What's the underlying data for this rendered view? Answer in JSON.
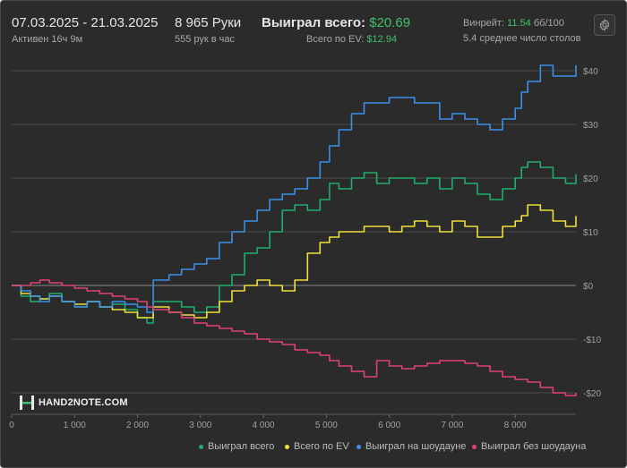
{
  "header": {
    "date_range": "07.03.2025 - 21.03.2025",
    "active": "Активен 16ч 9м",
    "hands": "8 965 Руки",
    "hands_per_hour": "555 рук в час",
    "won_total_label": "Выиграл всего:",
    "won_total_value": "$20.69",
    "ev_total_label": "Всего по EV:",
    "ev_total_value": "$12.94",
    "winrate_label": "Винрейт:",
    "winrate_value": "11.54",
    "winrate_unit": "бб/100",
    "avg_tables": "5.4 среднее число столов"
  },
  "logo": {
    "text": "HAND2NOTE.COM"
  },
  "colors": {
    "background": "#2b2b2b",
    "grid": "#4a4a4a",
    "zero_line": "#8a8a8a",
    "won_total": "#1fae6a",
    "ev": "#f0e03a",
    "showdown": "#3b8fe8",
    "no_showdown": "#e0407a",
    "accent_green": "#3ec06a"
  },
  "chart_data": {
    "type": "line",
    "x_ticks": [
      0,
      1000,
      2000,
      3000,
      4000,
      5000,
      6000,
      7000,
      8000
    ],
    "x_tick_labels": [
      "0",
      "1 000",
      "2 000",
      "3 000",
      "4 000",
      "5 000",
      "6 000",
      "7 000",
      "8 000"
    ],
    "y_ticks": [
      -20,
      -10,
      0,
      10,
      20,
      30,
      40
    ],
    "y_tick_labels": [
      "-$20",
      "-$10",
      "$0",
      "$10",
      "$20",
      "$30",
      "$40"
    ],
    "xlim": [
      0,
      8965
    ],
    "ylim": [
      -24,
      43
    ],
    "grid": true,
    "legend_position": "bottom-right",
    "series": [
      {
        "name": "Выиграл всего",
        "color": "#1fae6a",
        "x": [
          0,
          150,
          300,
          450,
          600,
          800,
          1000,
          1200,
          1400,
          1600,
          1800,
          2000,
          2150,
          2250,
          2500,
          2700,
          2900,
          3100,
          3300,
          3500,
          3700,
          3900,
          4100,
          4300,
          4500,
          4700,
          4900,
          5050,
          5200,
          5400,
          5600,
          5800,
          6000,
          6200,
          6400,
          6600,
          6800,
          7000,
          7200,
          7400,
          7600,
          7800,
          8000,
          8100,
          8200,
          8400,
          8600,
          8800,
          8965
        ],
        "y": [
          0,
          -2,
          -3,
          -2.5,
          -1.5,
          -3,
          -4,
          -3,
          -4,
          -3.5,
          -4.5,
          -6,
          -7,
          -3,
          -3,
          -4,
          -5,
          -4,
          0,
          2,
          6,
          7,
          10,
          14,
          15,
          14,
          16,
          19,
          18,
          20,
          21,
          19,
          20,
          20,
          19,
          20,
          18,
          20,
          19,
          17,
          16,
          18,
          20,
          22,
          23,
          22,
          20,
          19,
          20.69
        ]
      },
      {
        "name": "Всего по EV",
        "color": "#f0e03a",
        "x": [
          0,
          150,
          300,
          450,
          600,
          800,
          1000,
          1200,
          1400,
          1600,
          1800,
          2000,
          2150,
          2250,
          2500,
          2700,
          2900,
          3100,
          3300,
          3500,
          3700,
          3900,
          4100,
          4300,
          4500,
          4700,
          4900,
          5050,
          5200,
          5400,
          5600,
          5800,
          6000,
          6200,
          6400,
          6600,
          6800,
          7000,
          7200,
          7400,
          7600,
          7800,
          8000,
          8100,
          8200,
          8400,
          8600,
          8800,
          8965
        ],
        "y": [
          0,
          -1.5,
          -2,
          -2.5,
          -2,
          -3,
          -3.5,
          -3,
          -4,
          -4.5,
          -5,
          -6,
          -6,
          -4,
          -5,
          -5.5,
          -6,
          -5,
          -3,
          -1,
          0,
          1,
          0,
          -1,
          1,
          6,
          8,
          9,
          10,
          10,
          11,
          11,
          10,
          11,
          12,
          11,
          10,
          12,
          11,
          9,
          9,
          11,
          12,
          13,
          15,
          14,
          12,
          11,
          12.94
        ]
      },
      {
        "name": "Выиграл на шоудауне",
        "color": "#3b8fe8",
        "x": [
          0,
          150,
          300,
          450,
          600,
          800,
          1000,
          1200,
          1400,
          1600,
          1800,
          2000,
          2150,
          2250,
          2500,
          2700,
          2900,
          3100,
          3300,
          3500,
          3700,
          3900,
          4100,
          4300,
          4500,
          4700,
          4900,
          5050,
          5200,
          5400,
          5600,
          5800,
          6000,
          6200,
          6400,
          6600,
          6800,
          7000,
          7200,
          7400,
          7600,
          7800,
          8000,
          8100,
          8200,
          8400,
          8600,
          8800,
          8965
        ],
        "y": [
          0,
          -1,
          -2,
          -3,
          -2,
          -3,
          -4,
          -3,
          -4,
          -3,
          -3.5,
          -4,
          -5,
          1,
          2,
          3,
          4,
          5,
          8,
          10,
          12,
          14,
          16,
          17,
          18,
          20,
          23,
          26,
          29,
          32,
          34,
          34,
          35,
          35,
          34,
          34,
          31,
          32,
          31,
          30,
          29,
          31,
          33,
          36,
          38,
          41,
          39,
          39,
          41
        ]
      },
      {
        "name": "Выиграл без шоудауна",
        "color": "#e0407a",
        "x": [
          0,
          150,
          300,
          450,
          600,
          800,
          1000,
          1200,
          1400,
          1600,
          1800,
          2000,
          2150,
          2250,
          2500,
          2700,
          2900,
          3100,
          3300,
          3500,
          3700,
          3900,
          4100,
          4300,
          4500,
          4700,
          4900,
          5050,
          5200,
          5400,
          5600,
          5800,
          6000,
          6200,
          6400,
          6600,
          6800,
          7000,
          7200,
          7400,
          7600,
          7800,
          8000,
          8100,
          8200,
          8400,
          8600,
          8800,
          8965
        ],
        "y": [
          0,
          0,
          0.5,
          1,
          0.5,
          0,
          -0.5,
          -1,
          -1.5,
          -2,
          -2.5,
          -3,
          -4,
          -4.5,
          -5,
          -6,
          -7,
          -7.5,
          -8,
          -8.5,
          -9,
          -10,
          -10.5,
          -11,
          -12,
          -12.5,
          -13,
          -14,
          -15,
          -16,
          -17,
          -14,
          -15,
          -15.5,
          -15,
          -14.5,
          -14,
          -14,
          -14.5,
          -15,
          -16,
          -17,
          -17.5,
          -17.5,
          -18,
          -19,
          -20,
          -20.5,
          -20
        ]
      }
    ]
  }
}
